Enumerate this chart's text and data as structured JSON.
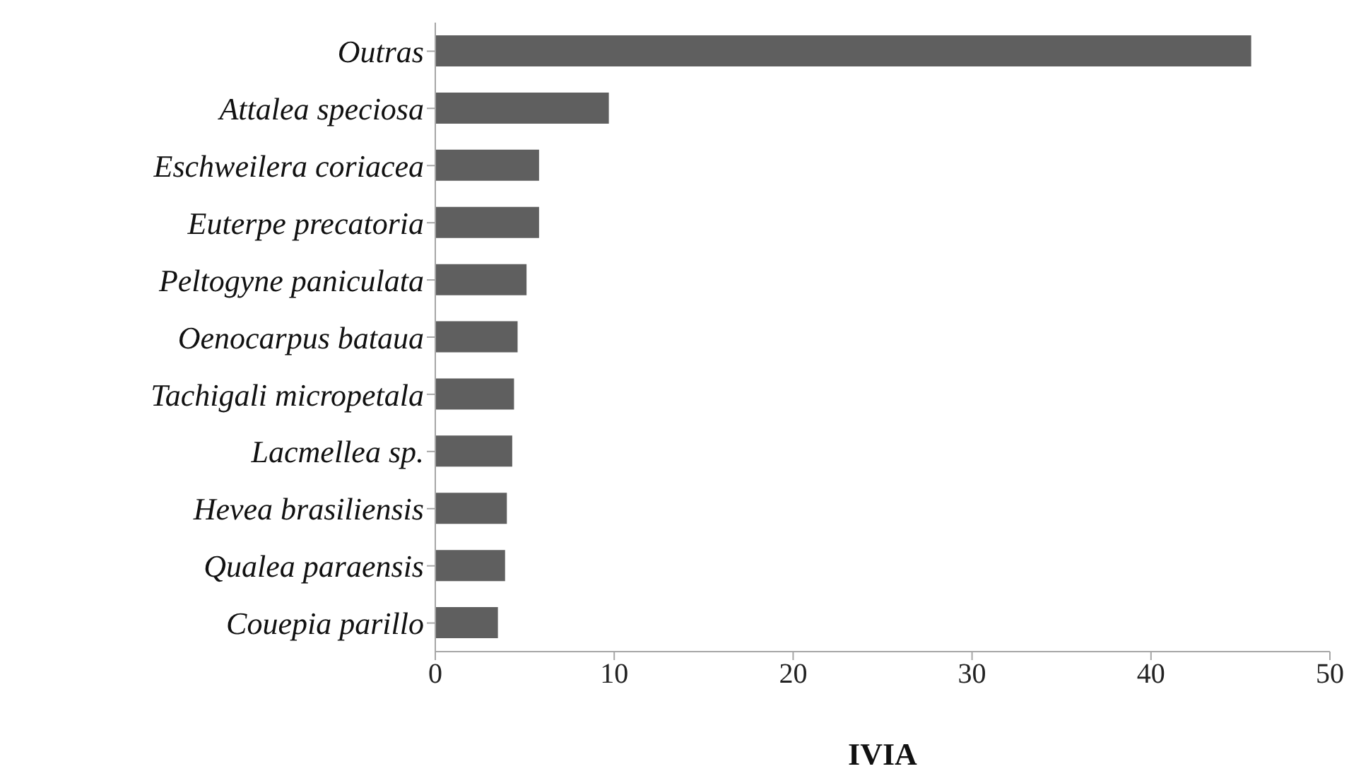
{
  "chart_data": {
    "type": "bar",
    "orientation": "horizontal",
    "xlabel": "IVIA",
    "categories": [
      "Outras",
      "Attalea speciosa",
      "Eschweilera coriacea",
      "Euterpe precatoria",
      "Peltogyne paniculata",
      "Oenocarpus bataua",
      "Tachigali micropetala",
      "Lacmellea sp.",
      "Hevea brasiliensis",
      "Qualea paraensis",
      "Couepia parillo"
    ],
    "values": [
      45.6,
      9.7,
      5.8,
      5.8,
      5.1,
      4.6,
      4.4,
      4.3,
      4.0,
      3.9,
      3.5
    ],
    "color": "#5f5f5f",
    "xlim": [
      0,
      50
    ],
    "xticks": [
      0,
      10,
      20,
      30,
      40,
      50
    ],
    "grid": false
  }
}
